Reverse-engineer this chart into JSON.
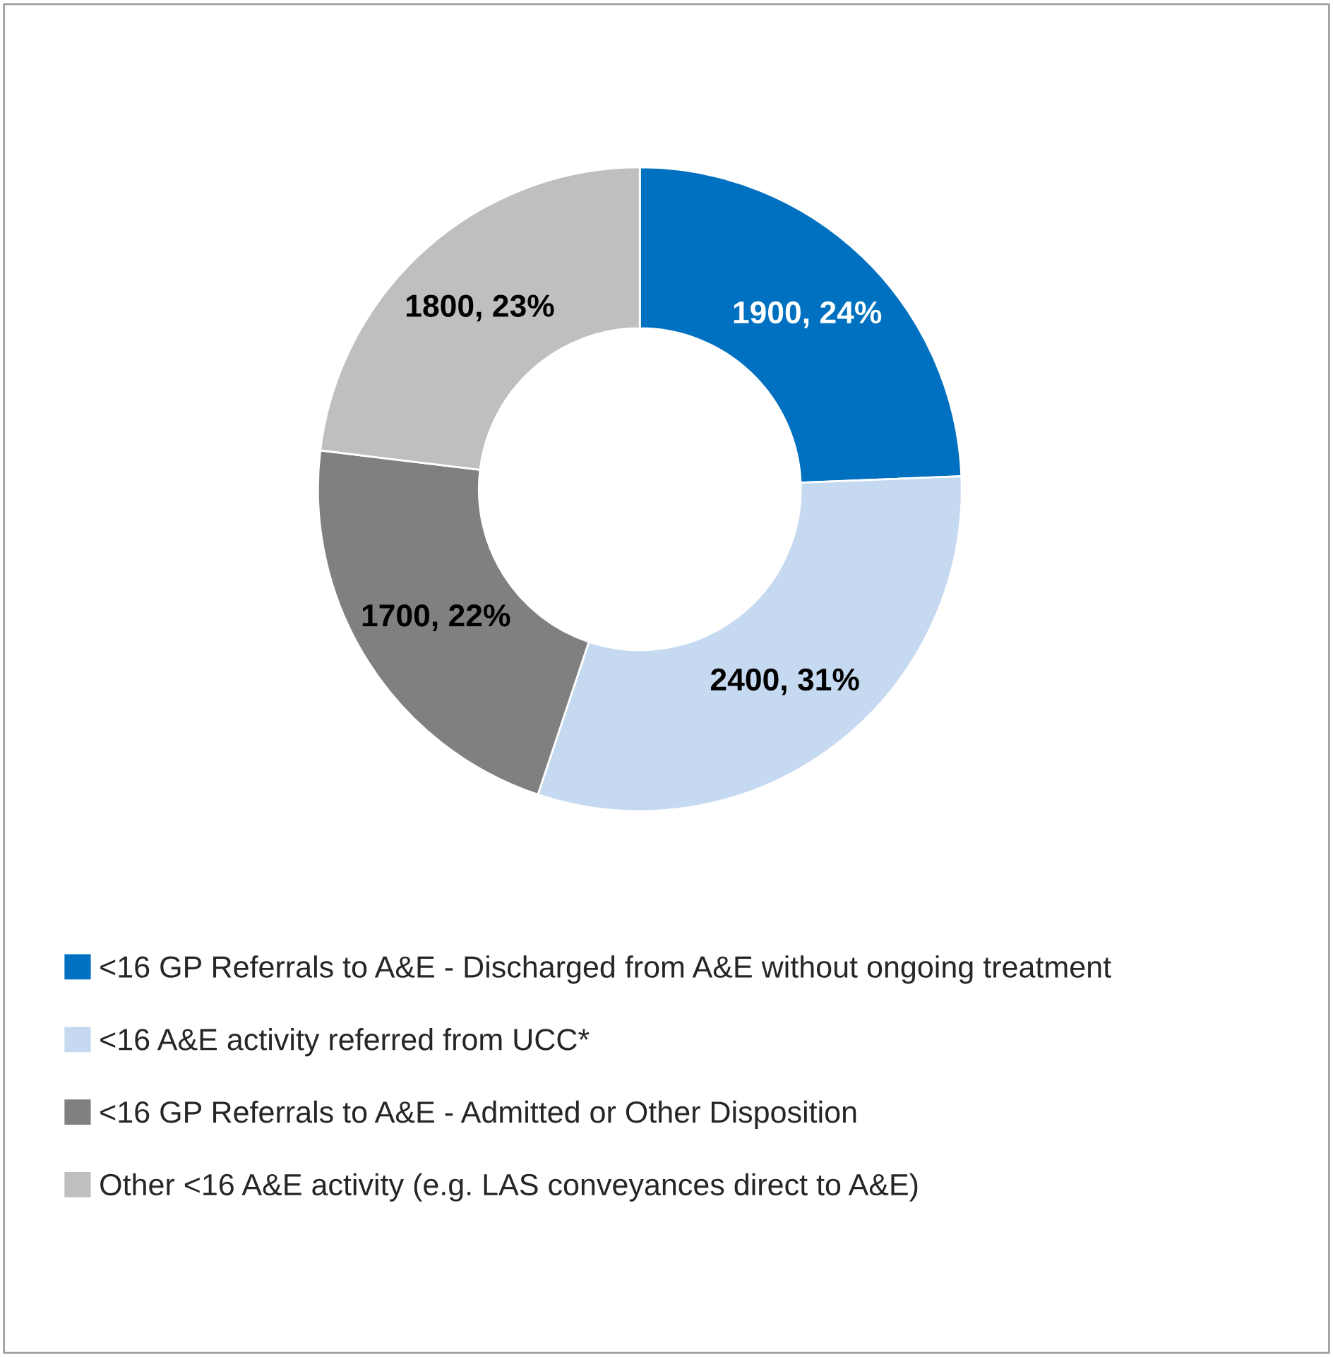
{
  "chart_data": {
    "type": "donut",
    "categories": [
      "<16 GP Referrals to A&E - Discharged from A&E without ongoing treatment",
      "<16 A&E activity referred from UCC*",
      "<16 GP Referrals to A&E - Admitted or Other Disposition",
      "Other <16 A&E activity (e.g. LAS conveyances direct to A&E)"
    ],
    "values": [
      1900,
      2400,
      1700,
      1800
    ],
    "colors": [
      "#0070c0",
      "#c5d9f1",
      "#808080",
      "#bfbfbf"
    ],
    "value_labels": [
      "1900, 24%",
      "2400, 31%",
      "1700, 22%",
      "1800, 23%"
    ],
    "legend": "bottom"
  }
}
